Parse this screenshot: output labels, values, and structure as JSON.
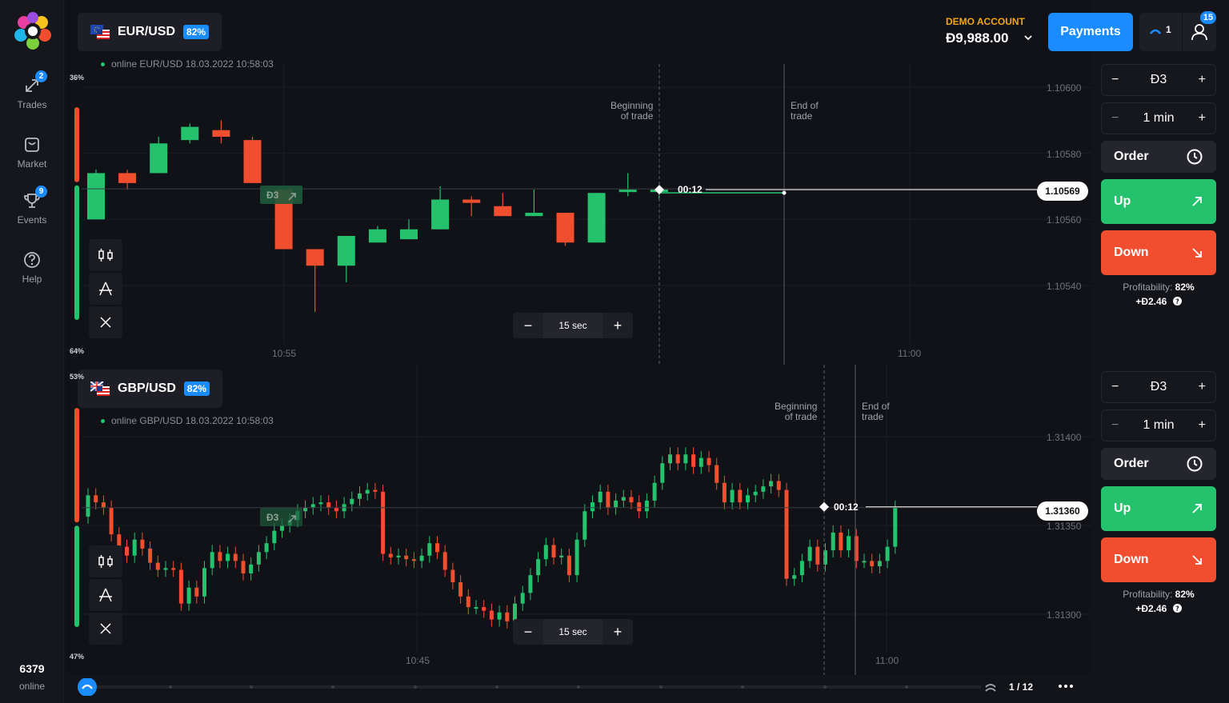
{
  "sidebar": {
    "items": [
      {
        "label": "Trades",
        "badge": "2",
        "icon": "trades-arrows-icon"
      },
      {
        "label": "Market",
        "badge": "",
        "icon": "shopping-bag-icon"
      },
      {
        "label": "Events",
        "badge": "9",
        "icon": "trophy-icon"
      },
      {
        "label": "Help",
        "badge": "",
        "icon": "question-icon"
      }
    ],
    "online_count": "6379",
    "online_label": "online"
  },
  "header": {
    "account_type": "DEMO ACCOUNT",
    "balance": "Đ9,988.00",
    "payments_label": "Payments",
    "open_trades_count": "1",
    "notifications_count": "15"
  },
  "charts": [
    {
      "asset": "EUR/USD",
      "payout_pct": "82%",
      "online_text": "online EUR/USD  18.03.2022 10:58:03",
      "sentiment_top": "36%",
      "sentiment_bottom": "64%",
      "current_price": "1.10569",
      "price_ticks": [
        "1.10600",
        "1.10580",
        "1.10560",
        "1.10540"
      ],
      "time_ticks": [
        "10:55",
        "11:00"
      ],
      "beginning_label": "Beginning\nof trade",
      "end_label": "End of\ntrade",
      "countdown": "00:12",
      "trade_marker": "Đ3",
      "timeframe": "15 sec",
      "chart_data": {
        "type": "candlestick",
        "candles": [
          {
            "o": 1.1056,
            "c": 1.10574,
            "h": 1.10575,
            "l": 1.1056,
            "dir": "up"
          },
          {
            "o": 1.10574,
            "c": 1.10571,
            "h": 1.10575,
            "l": 1.10569,
            "dir": "down"
          },
          {
            "o": 1.10574,
            "c": 1.10583,
            "h": 1.10585,
            "l": 1.10574,
            "dir": "up"
          },
          {
            "o": 1.10584,
            "c": 1.10588,
            "h": 1.10589,
            "l": 1.10583,
            "dir": "up"
          },
          {
            "o": 1.10587,
            "c": 1.10585,
            "h": 1.1059,
            "l": 1.10583,
            "dir": "down"
          },
          {
            "o": 1.10584,
            "c": 1.10571,
            "h": 1.10585,
            "l": 1.10571,
            "dir": "down"
          },
          {
            "o": 1.10569,
            "c": 1.10551,
            "h": 1.10569,
            "l": 1.10551,
            "dir": "down"
          },
          {
            "o": 1.10551,
            "c": 1.10546,
            "h": 1.10551,
            "l": 1.10532,
            "dir": "down"
          },
          {
            "o": 1.10546,
            "c": 1.10555,
            "h": 1.10555,
            "l": 1.10541,
            "dir": "up"
          },
          {
            "o": 1.10553,
            "c": 1.10557,
            "h": 1.10558,
            "l": 1.10553,
            "dir": "up"
          },
          {
            "o": 1.10554,
            "c": 1.10557,
            "h": 1.1056,
            "l": 1.10554,
            "dir": "up"
          },
          {
            "o": 1.10557,
            "c": 1.10566,
            "h": 1.1057,
            "l": 1.10557,
            "dir": "up"
          },
          {
            "o": 1.10566,
            "c": 1.10565,
            "h": 1.10567,
            "l": 1.10561,
            "dir": "down"
          },
          {
            "o": 1.10564,
            "c": 1.10561,
            "h": 1.10568,
            "l": 1.10561,
            "dir": "down"
          },
          {
            "o": 1.10561,
            "c": 1.10562,
            "h": 1.10569,
            "l": 1.10561,
            "dir": "up"
          },
          {
            "o": 1.10562,
            "c": 1.10553,
            "h": 1.10562,
            "l": 1.10552,
            "dir": "down"
          },
          {
            "o": 1.10553,
            "c": 1.10568,
            "h": 1.10568,
            "l": 1.10553,
            "dir": "up"
          },
          {
            "o": 1.10569,
            "c": 1.10569,
            "h": 1.10574,
            "l": 1.10567,
            "dir": "up"
          },
          {
            "o": 1.10569,
            "c": 1.10569,
            "h": 1.1057,
            "l": 1.10566,
            "dir": "up"
          }
        ]
      }
    },
    {
      "asset": "GBP/USD",
      "payout_pct": "82%",
      "online_text": "online GBP/USD  18.03.2022 10:58:03",
      "sentiment_top": "53%",
      "sentiment_bottom": "47%",
      "current_price": "1.31360",
      "price_ticks": [
        "1.31400",
        "1.31350",
        "1.31300"
      ],
      "time_ticks": [
        "10:45",
        "11:00"
      ],
      "beginning_label": "Beginning\nof trade",
      "end_label": "End of\ntrade",
      "countdown": "00:12",
      "trade_marker": "Đ3",
      "timeframe": "15 sec",
      "chart_data": {
        "type": "candlestick",
        "closes": [
          1.31367,
          1.31363,
          1.3136,
          1.31345,
          1.31338,
          1.31333,
          1.31342,
          1.31337,
          1.31329,
          1.31325,
          1.31326,
          1.31325,
          1.31306,
          1.31315,
          1.3131,
          1.31326,
          1.31335,
          1.3133,
          1.31334,
          1.3133,
          1.31323,
          1.31328,
          1.31335,
          1.3134,
          1.31347,
          1.3135,
          1.31353,
          1.31358,
          1.3136,
          1.31362,
          1.31363,
          1.3136,
          1.31358,
          1.31362,
          1.31365,
          1.31368,
          1.3137,
          1.31369,
          1.31334,
          1.31332,
          1.31333,
          1.31331,
          1.3133,
          1.31333,
          1.3134,
          1.31335,
          1.31325,
          1.31318,
          1.3131,
          1.31304,
          1.31304,
          1.31302,
          1.31297,
          1.31301,
          1.31296,
          1.31306,
          1.31312,
          1.31322,
          1.31331,
          1.31339,
          1.31332,
          1.31333,
          1.31322,
          1.31342,
          1.31358,
          1.31363,
          1.31369,
          1.3136,
          1.31364,
          1.31366,
          1.31363,
          1.31358,
          1.31364,
          1.31374,
          1.31385,
          1.3139,
          1.31385,
          1.3139,
          1.31383,
          1.31388,
          1.31384,
          1.31374,
          1.31363,
          1.3137,
          1.31363,
          1.31367,
          1.31369,
          1.31372,
          1.31375,
          1.3137,
          1.3132,
          1.31322,
          1.3133,
          1.31338,
          1.31328,
          1.31336,
          1.31346,
          1.31336,
          1.31344,
          1.3133,
          1.3133,
          1.31327,
          1.3133,
          1.31338,
          1.3136
        ]
      }
    }
  ],
  "trade_panel": [
    {
      "amount": "Đ3",
      "duration": "1 min",
      "order_label": "Order",
      "up_label": "Up",
      "down_label": "Down",
      "profitability_label": "Profitability:",
      "profitability_value": "82%",
      "payout": "+Đ2.46"
    },
    {
      "amount": "Đ3",
      "duration": "1 min",
      "order_label": "Order",
      "up_label": "Up",
      "down_label": "Down",
      "profitability_label": "Profitability:",
      "profitability_value": "82%",
      "payout": "+Đ2.46"
    }
  ],
  "bottom": {
    "page_indicator": "1 / 12"
  },
  "colors": {
    "up": "#25c26e",
    "down": "#f04e2f",
    "accent": "#1a8cff",
    "demo": "#f2a51a"
  }
}
